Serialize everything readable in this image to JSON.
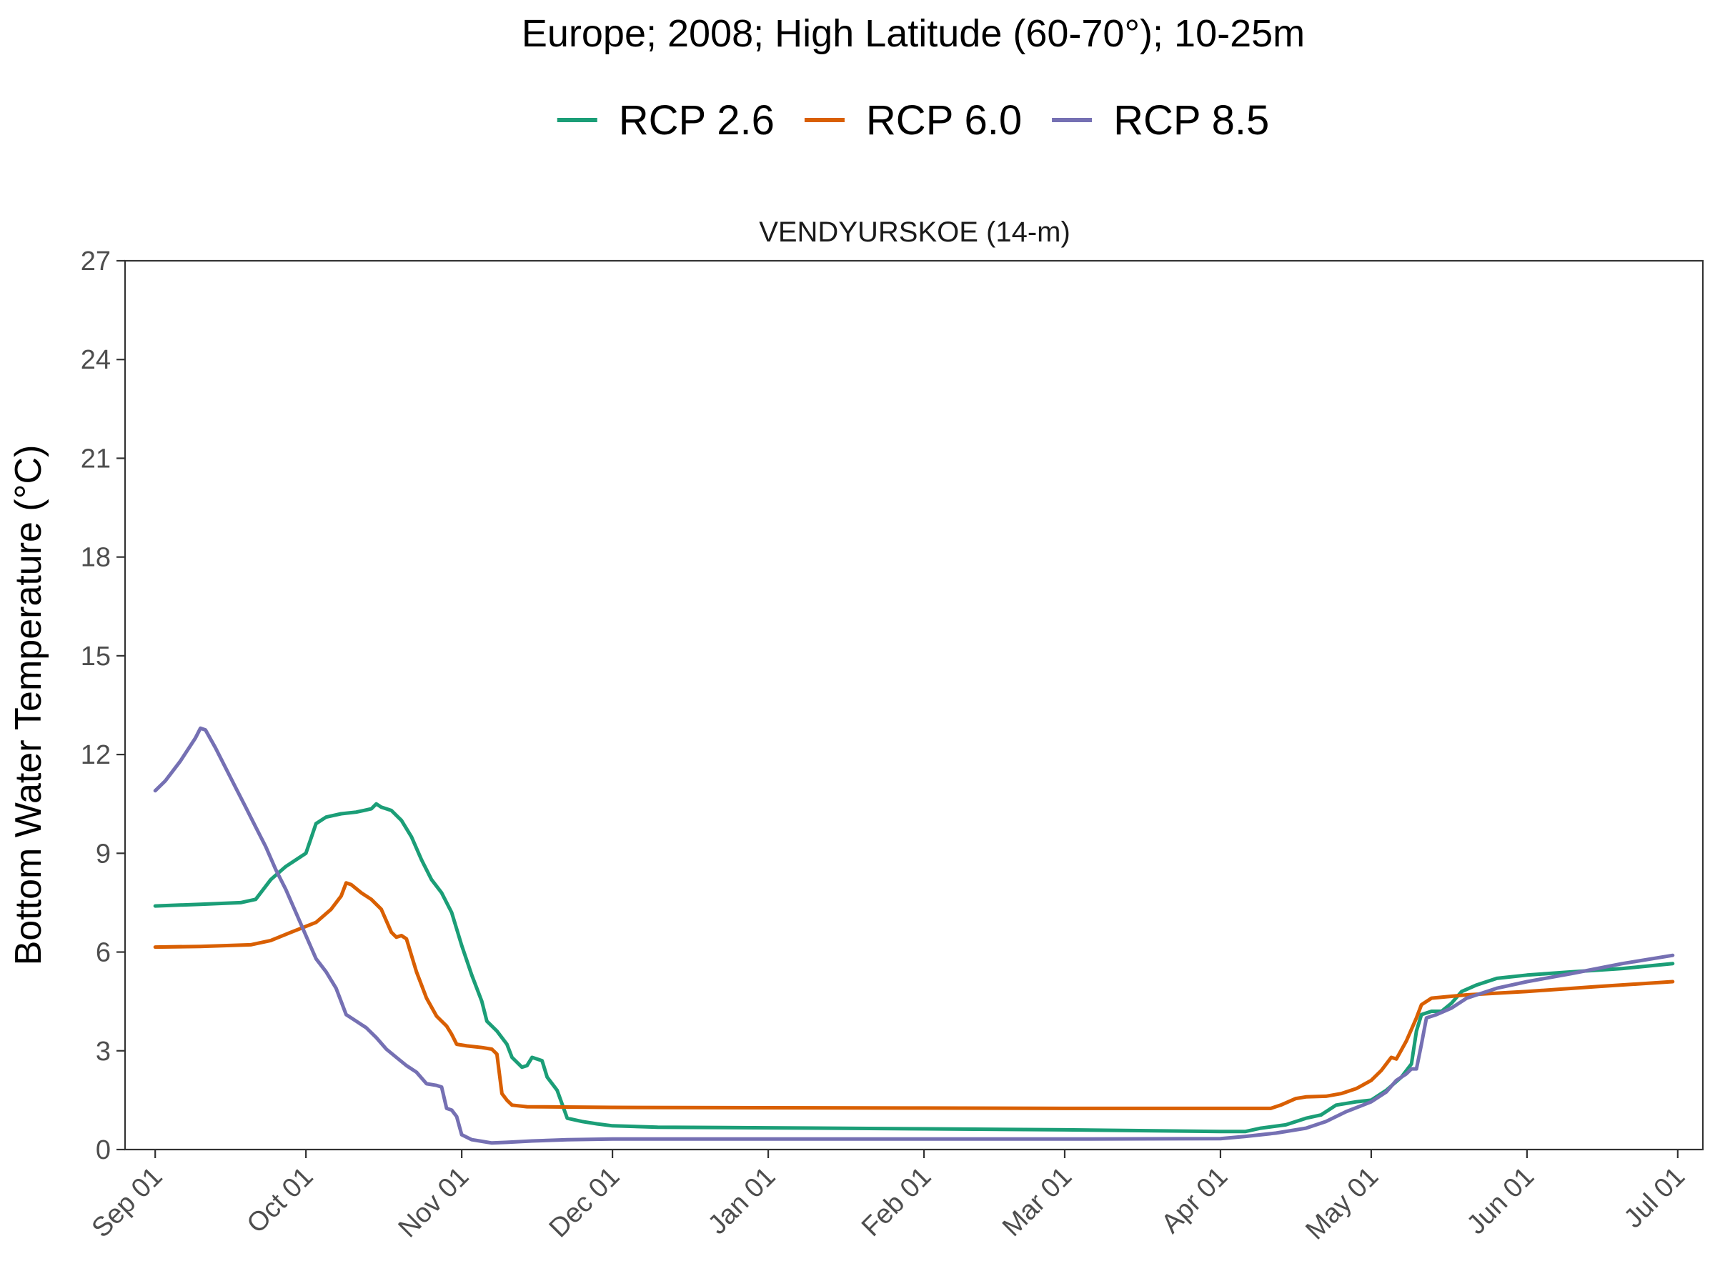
{
  "chart_data": {
    "type": "line",
    "title": "Europe;  2008;  High Latitude (60-70°);  10-25m",
    "panel_title": "VENDYURSKOE (14-m)",
    "xlabel": "",
    "ylabel": "Bottom Water Temperature (°C)",
    "ylim": [
      0,
      27
    ],
    "yticks": [
      0,
      3,
      6,
      9,
      12,
      15,
      18,
      21,
      24,
      27
    ],
    "xlim": [
      "2008-08-26",
      "2009-07-06"
    ],
    "xticks": [
      "2008-09-01",
      "2008-10-01",
      "2008-11-01",
      "2008-12-01",
      "2009-01-01",
      "2009-02-01",
      "2009-03-01",
      "2009-04-01",
      "2009-05-01",
      "2009-06-01",
      "2009-07-01"
    ],
    "xtick_labels": [
      "Sep 01",
      "Oct 01",
      "Nov 01",
      "Dec 01",
      "Jan 01",
      "Feb 01",
      "Mar 01",
      "Apr 01",
      "May 01",
      "Jun 01",
      "Jul 01"
    ],
    "legend_position": "top",
    "grid": false,
    "series": [
      {
        "name": "RCP 2.6",
        "color": "#1b9e77",
        "points": [
          [
            "2008-09-01",
            7.4
          ],
          [
            "2008-09-10",
            7.45
          ],
          [
            "2008-09-18",
            7.5
          ],
          [
            "2008-09-21",
            7.6
          ],
          [
            "2008-09-24",
            8.2
          ],
          [
            "2008-09-27",
            8.6
          ],
          [
            "2008-09-30",
            8.9
          ],
          [
            "2008-10-01",
            9.0
          ],
          [
            "2008-10-03",
            9.9
          ],
          [
            "2008-10-05",
            10.1
          ],
          [
            "2008-10-08",
            10.2
          ],
          [
            "2008-10-11",
            10.25
          ],
          [
            "2008-10-14",
            10.35
          ],
          [
            "2008-10-15",
            10.5
          ],
          [
            "2008-10-16",
            10.4
          ],
          [
            "2008-10-18",
            10.3
          ],
          [
            "2008-10-20",
            10.0
          ],
          [
            "2008-10-22",
            9.5
          ],
          [
            "2008-10-24",
            8.8
          ],
          [
            "2008-10-26",
            8.2
          ],
          [
            "2008-10-28",
            7.8
          ],
          [
            "2008-10-30",
            7.2
          ],
          [
            "2008-11-01",
            6.2
          ],
          [
            "2008-11-03",
            5.3
          ],
          [
            "2008-11-05",
            4.5
          ],
          [
            "2008-11-06",
            3.9
          ],
          [
            "2008-11-08",
            3.6
          ],
          [
            "2008-11-10",
            3.2
          ],
          [
            "2008-11-11",
            2.8
          ],
          [
            "2008-11-13",
            2.5
          ],
          [
            "2008-11-14",
            2.55
          ],
          [
            "2008-11-15",
            2.8
          ],
          [
            "2008-11-17",
            2.7
          ],
          [
            "2008-11-18",
            2.2
          ],
          [
            "2008-11-20",
            1.8
          ],
          [
            "2008-11-22",
            0.95
          ],
          [
            "2008-11-25",
            0.85
          ],
          [
            "2008-11-28",
            0.78
          ],
          [
            "2008-12-01",
            0.72
          ],
          [
            "2008-12-10",
            0.68
          ],
          [
            "2009-01-01",
            0.66
          ],
          [
            "2009-02-01",
            0.63
          ],
          [
            "2009-03-01",
            0.6
          ],
          [
            "2009-04-01",
            0.55
          ],
          [
            "2009-04-06",
            0.55
          ],
          [
            "2009-04-09",
            0.65
          ],
          [
            "2009-04-14",
            0.75
          ],
          [
            "2009-04-18",
            0.95
          ],
          [
            "2009-04-21",
            1.05
          ],
          [
            "2009-04-24",
            1.35
          ],
          [
            "2009-04-28",
            1.45
          ],
          [
            "2009-05-01",
            1.5
          ],
          [
            "2009-05-04",
            1.8
          ],
          [
            "2009-05-07",
            2.2
          ],
          [
            "2009-05-09",
            2.6
          ],
          [
            "2009-05-10",
            3.6
          ],
          [
            "2009-05-11",
            4.1
          ],
          [
            "2009-05-13",
            4.2
          ],
          [
            "2009-05-15",
            4.2
          ],
          [
            "2009-05-17",
            4.45
          ],
          [
            "2009-05-19",
            4.8
          ],
          [
            "2009-05-22",
            5.0
          ],
          [
            "2009-05-26",
            5.2
          ],
          [
            "2009-06-01",
            5.3
          ],
          [
            "2009-06-10",
            5.4
          ],
          [
            "2009-06-20",
            5.5
          ],
          [
            "2009-06-30",
            5.65
          ]
        ]
      },
      {
        "name": "RCP 6.0",
        "color": "#d95f02",
        "points": [
          [
            "2008-09-01",
            6.15
          ],
          [
            "2008-09-10",
            6.17
          ],
          [
            "2008-09-20",
            6.22
          ],
          [
            "2008-09-24",
            6.35
          ],
          [
            "2008-09-28",
            6.6
          ],
          [
            "2008-10-03",
            6.9
          ],
          [
            "2008-10-06",
            7.3
          ],
          [
            "2008-10-08",
            7.7
          ],
          [
            "2008-10-09",
            8.1
          ],
          [
            "2008-10-10",
            8.05
          ],
          [
            "2008-10-12",
            7.8
          ],
          [
            "2008-10-14",
            7.6
          ],
          [
            "2008-10-16",
            7.3
          ],
          [
            "2008-10-18",
            6.6
          ],
          [
            "2008-10-19",
            6.45
          ],
          [
            "2008-10-20",
            6.5
          ],
          [
            "2008-10-21",
            6.4
          ],
          [
            "2008-10-23",
            5.4
          ],
          [
            "2008-10-25",
            4.6
          ],
          [
            "2008-10-27",
            4.05
          ],
          [
            "2008-10-29",
            3.75
          ],
          [
            "2008-10-30",
            3.5
          ],
          [
            "2008-10-31",
            3.2
          ],
          [
            "2008-11-02",
            3.15
          ],
          [
            "2008-11-05",
            3.1
          ],
          [
            "2008-11-07",
            3.05
          ],
          [
            "2008-11-08",
            2.9
          ],
          [
            "2008-11-09",
            1.7
          ],
          [
            "2008-11-10",
            1.5
          ],
          [
            "2008-11-11",
            1.35
          ],
          [
            "2008-11-14",
            1.3
          ],
          [
            "2008-12-01",
            1.28
          ],
          [
            "2009-01-01",
            1.27
          ],
          [
            "2009-02-01",
            1.26
          ],
          [
            "2009-03-01",
            1.25
          ],
          [
            "2009-04-01",
            1.25
          ],
          [
            "2009-04-11",
            1.25
          ],
          [
            "2009-04-13",
            1.35
          ],
          [
            "2009-04-16",
            1.55
          ],
          [
            "2009-04-18",
            1.6
          ],
          [
            "2009-04-22",
            1.62
          ],
          [
            "2009-04-25",
            1.7
          ],
          [
            "2009-04-28",
            1.85
          ],
          [
            "2009-05-01",
            2.1
          ],
          [
            "2009-05-03",
            2.4
          ],
          [
            "2009-05-05",
            2.8
          ],
          [
            "2009-05-06",
            2.75
          ],
          [
            "2009-05-08",
            3.3
          ],
          [
            "2009-05-10",
            4.0
          ],
          [
            "2009-05-11",
            4.4
          ],
          [
            "2009-05-13",
            4.6
          ],
          [
            "2009-05-20",
            4.7
          ],
          [
            "2009-06-01",
            4.8
          ],
          [
            "2009-06-15",
            4.95
          ],
          [
            "2009-06-30",
            5.1
          ]
        ]
      },
      {
        "name": "RCP 8.5",
        "color": "#7570b3",
        "points": [
          [
            "2008-09-01",
            10.9
          ],
          [
            "2008-09-03",
            11.2
          ],
          [
            "2008-09-06",
            11.8
          ],
          [
            "2008-09-09",
            12.5
          ],
          [
            "2008-09-10",
            12.8
          ],
          [
            "2008-09-11",
            12.75
          ],
          [
            "2008-09-13",
            12.2
          ],
          [
            "2008-09-15",
            11.6
          ],
          [
            "2008-09-17",
            11.0
          ],
          [
            "2008-09-19",
            10.4
          ],
          [
            "2008-09-21",
            9.8
          ],
          [
            "2008-09-23",
            9.2
          ],
          [
            "2008-09-25",
            8.5
          ],
          [
            "2008-09-27",
            7.9
          ],
          [
            "2008-09-29",
            7.2
          ],
          [
            "2008-10-01",
            6.5
          ],
          [
            "2008-10-03",
            5.8
          ],
          [
            "2008-10-05",
            5.4
          ],
          [
            "2008-10-07",
            4.9
          ],
          [
            "2008-10-08",
            4.5
          ],
          [
            "2008-10-09",
            4.1
          ],
          [
            "2008-10-11",
            3.9
          ],
          [
            "2008-10-13",
            3.7
          ],
          [
            "2008-10-15",
            3.4
          ],
          [
            "2008-10-17",
            3.05
          ],
          [
            "2008-10-19",
            2.8
          ],
          [
            "2008-10-21",
            2.55
          ],
          [
            "2008-10-23",
            2.35
          ],
          [
            "2008-10-25",
            2.0
          ],
          [
            "2008-10-27",
            1.95
          ],
          [
            "2008-10-28",
            1.9
          ],
          [
            "2008-10-29",
            1.25
          ],
          [
            "2008-10-30",
            1.2
          ],
          [
            "2008-10-31",
            1.0
          ],
          [
            "2008-11-01",
            0.45
          ],
          [
            "2008-11-03",
            0.3
          ],
          [
            "2008-11-05",
            0.25
          ],
          [
            "2008-11-07",
            0.2
          ],
          [
            "2008-11-10",
            0.22
          ],
          [
            "2008-11-15",
            0.26
          ],
          [
            "2008-11-22",
            0.3
          ],
          [
            "2008-12-01",
            0.32
          ],
          [
            "2009-01-01",
            0.32
          ],
          [
            "2009-02-01",
            0.32
          ],
          [
            "2009-03-01",
            0.32
          ],
          [
            "2009-04-01",
            0.33
          ],
          [
            "2009-04-06",
            0.4
          ],
          [
            "2009-04-12",
            0.5
          ],
          [
            "2009-04-18",
            0.65
          ],
          [
            "2009-04-22",
            0.85
          ],
          [
            "2009-04-26",
            1.15
          ],
          [
            "2009-05-01",
            1.45
          ],
          [
            "2009-05-04",
            1.75
          ],
          [
            "2009-05-06",
            2.1
          ],
          [
            "2009-05-08",
            2.3
          ],
          [
            "2009-05-09",
            2.45
          ],
          [
            "2009-05-10",
            2.45
          ],
          [
            "2009-05-11",
            3.2
          ],
          [
            "2009-05-12",
            4.0
          ],
          [
            "2009-05-14",
            4.1
          ],
          [
            "2009-05-17",
            4.3
          ],
          [
            "2009-05-20",
            4.6
          ],
          [
            "2009-05-26",
            4.9
          ],
          [
            "2009-06-01",
            5.1
          ],
          [
            "2009-06-10",
            5.35
          ],
          [
            "2009-06-20",
            5.65
          ],
          [
            "2009-06-30",
            5.9
          ]
        ]
      }
    ]
  }
}
